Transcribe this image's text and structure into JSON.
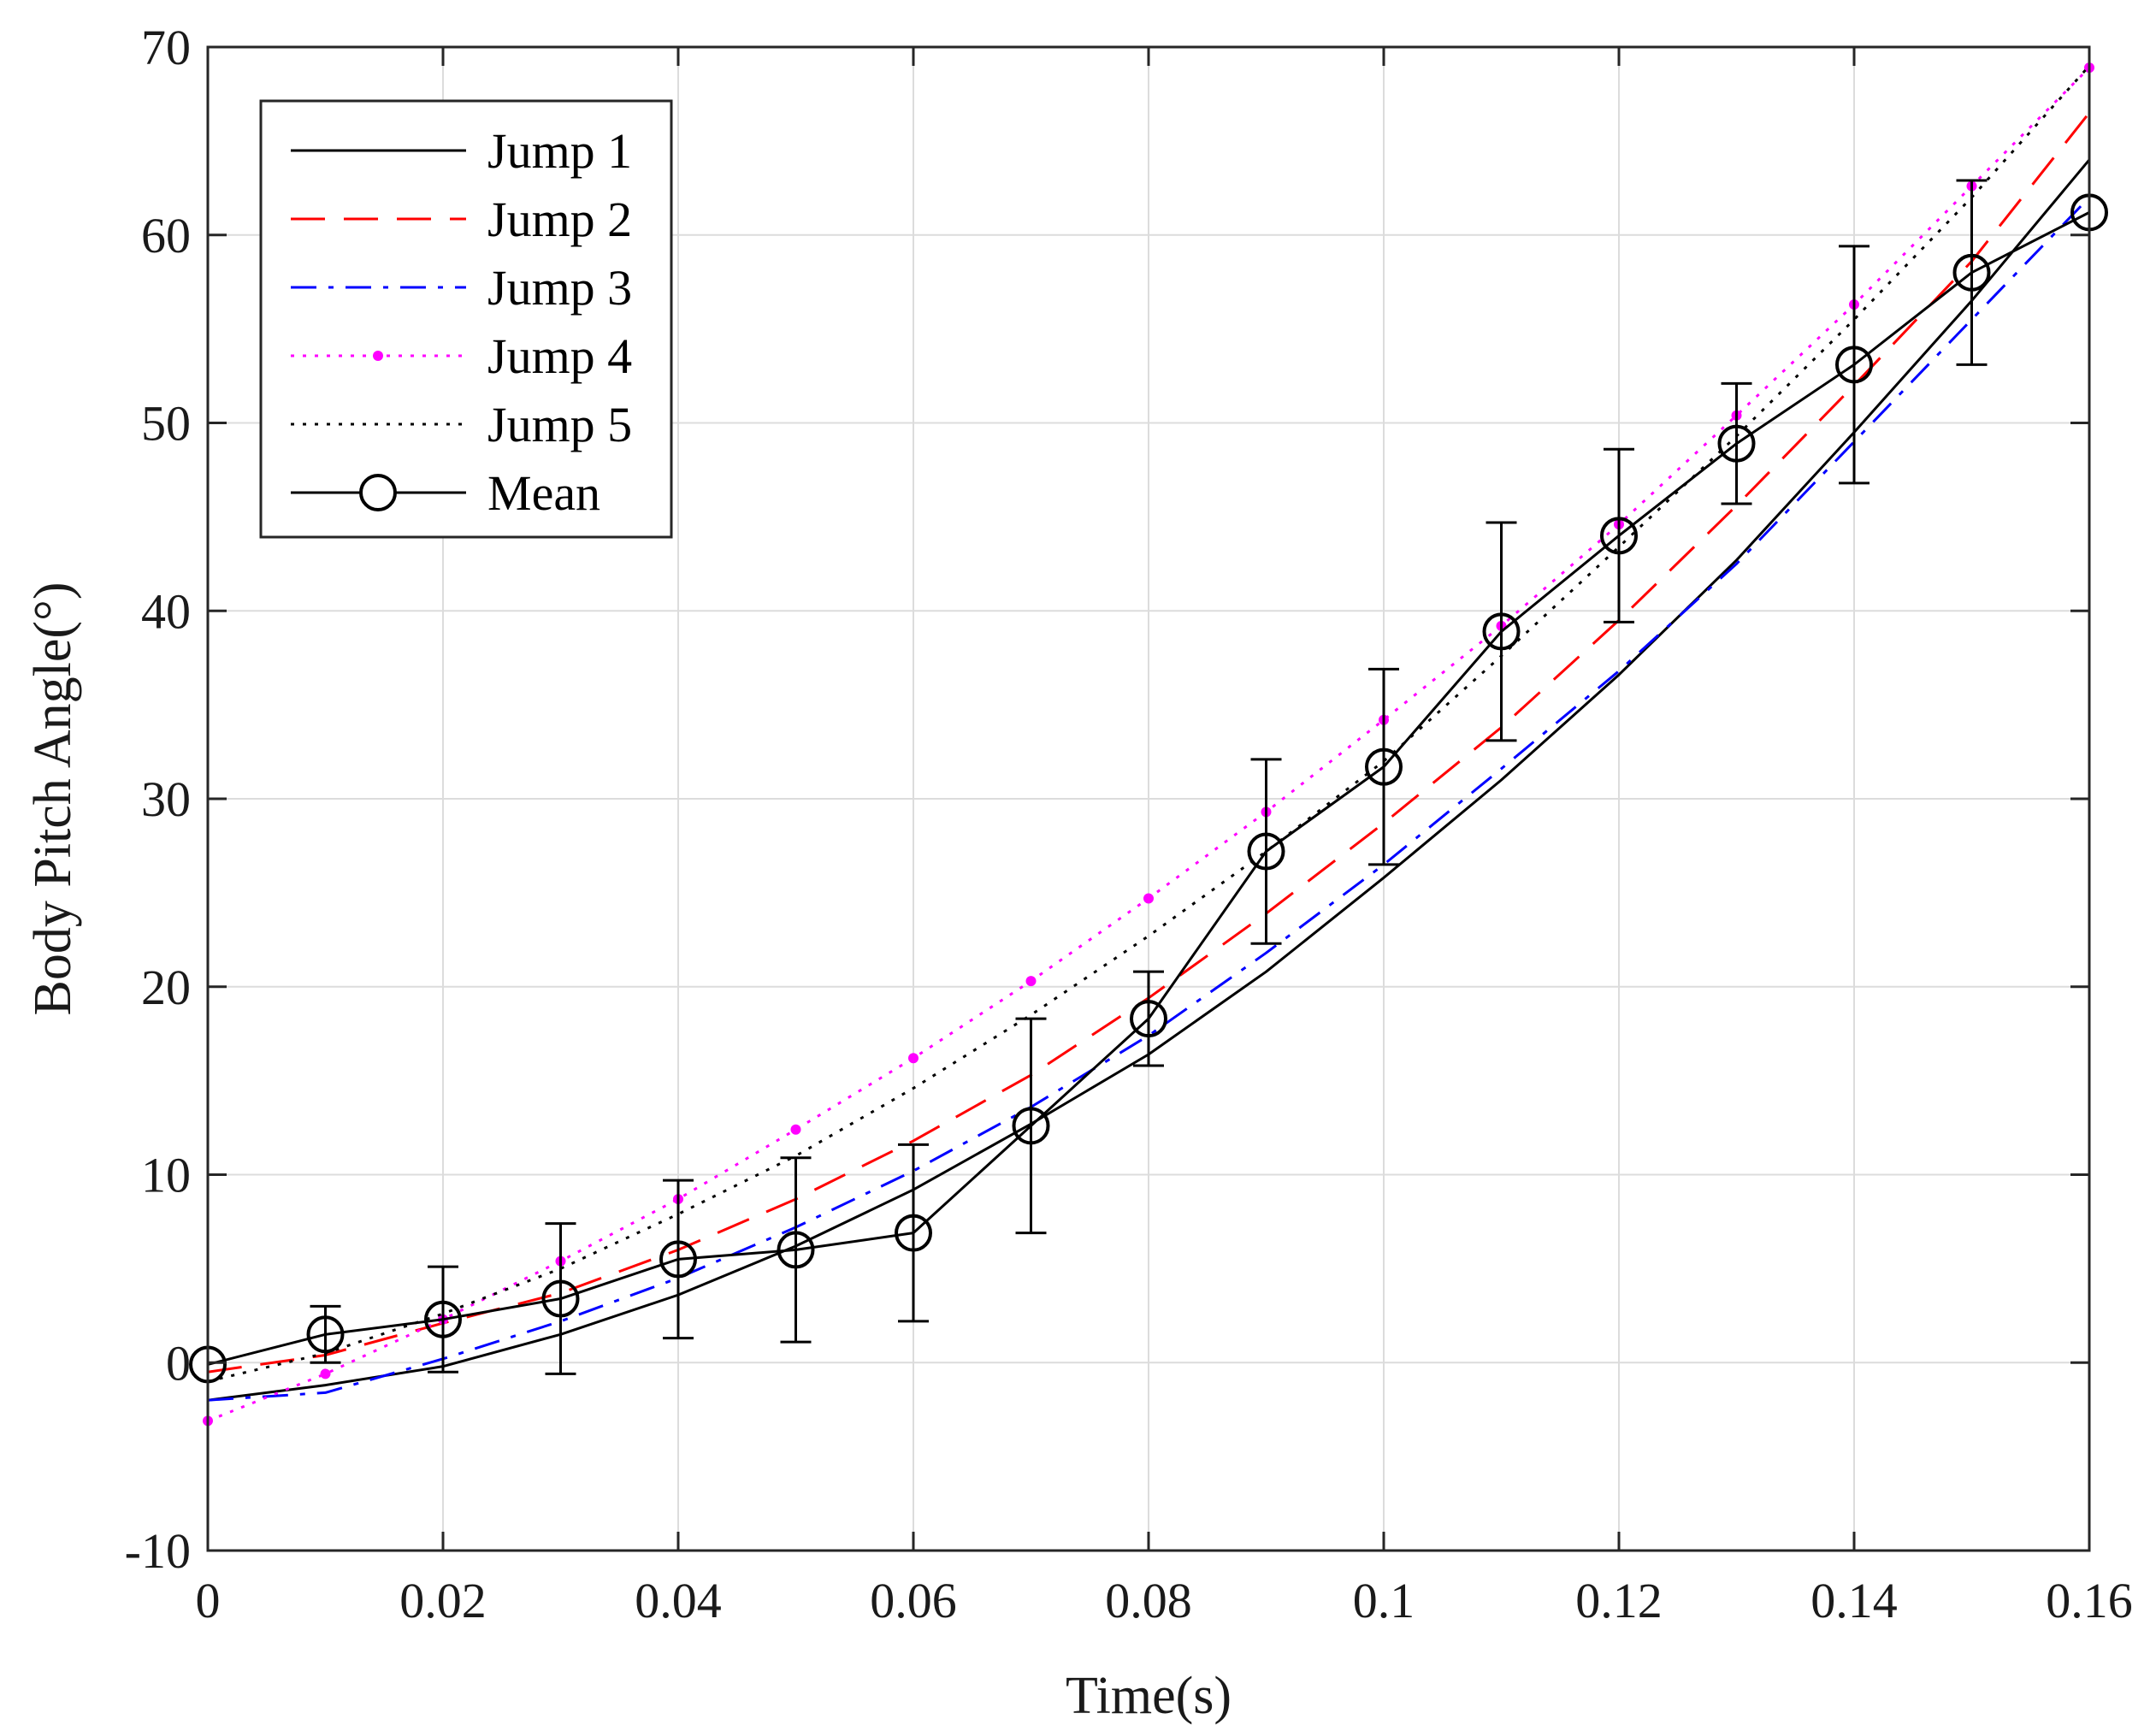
{
  "chart_data": {
    "type": "line",
    "title": "",
    "xlabel": "Time(s)",
    "ylabel": "Body Pitch Angle(°)",
    "xlim": [
      0,
      0.16
    ],
    "ylim": [
      -10,
      70
    ],
    "grid": true,
    "legend_position": "top-left",
    "x_ticks": [
      0,
      0.02,
      0.04,
      0.06,
      0.08,
      0.1,
      0.12,
      0.14,
      0.16
    ],
    "x_tick_labels": [
      "0",
      "0.02",
      "0.04",
      "0.06",
      "0.08",
      "0.1",
      "0.12",
      "0.14",
      "0.16"
    ],
    "y_ticks": [
      -10,
      0,
      10,
      20,
      30,
      40,
      50,
      60,
      70
    ],
    "y_tick_labels": [
      "-10",
      "0",
      "10",
      "20",
      "30",
      "40",
      "50",
      "60",
      "70"
    ],
    "x": [
      0,
      0.01,
      0.02,
      0.03,
      0.04,
      0.05,
      0.06,
      0.07,
      0.08,
      0.09,
      0.1,
      0.11,
      0.12,
      0.13,
      0.14,
      0.15,
      0.16
    ],
    "series": [
      {
        "name": "Jump 1",
        "color": "#000000",
        "style": "solid",
        "values": [
          -2.0,
          -1.2,
          -0.2,
          1.5,
          3.6,
          6.2,
          9.2,
          12.7,
          16.4,
          20.8,
          25.8,
          31.0,
          36.6,
          42.7,
          49.5,
          56.5,
          64.0
        ]
      },
      {
        "name": "Jump 2",
        "color": "#ff0000",
        "style": "dashed",
        "values": [
          -0.5,
          0.4,
          2.1,
          3.7,
          6.0,
          8.7,
          11.8,
          15.3,
          19.4,
          23.9,
          28.7,
          33.8,
          39.5,
          45.6,
          52.0,
          58.6,
          66.5
        ]
      },
      {
        "name": "Jump 3",
        "color": "#0000ff",
        "style": "dashdot",
        "values": [
          -2.0,
          -1.6,
          0.2,
          2.2,
          4.5,
          7.2,
          10.2,
          13.6,
          17.4,
          21.8,
          26.5,
          31.6,
          36.8,
          42.5,
          49.0,
          55.5,
          62.0
        ]
      },
      {
        "name": "Jump 4",
        "color": "#ff00ff",
        "style": "dotted-markers",
        "values": [
          -3.1,
          -0.6,
          2.3,
          5.4,
          8.7,
          12.4,
          16.2,
          20.3,
          24.7,
          29.3,
          34.2,
          39.2,
          44.6,
          50.4,
          56.3,
          62.6,
          68.9
        ]
      },
      {
        "name": "Jump 5",
        "color": "#000000",
        "style": "dotted",
        "values": [
          -1.0,
          0.5,
          2.6,
          5.0,
          7.9,
          11.0,
          14.6,
          18.5,
          22.7,
          27.2,
          32.0,
          37.6,
          43.4,
          49.3,
          55.5,
          62.0,
          69.0
        ]
      },
      {
        "name": "Mean",
        "color": "#000000",
        "style": "solid-circles",
        "values": [
          -0.1,
          1.5,
          2.3,
          3.4,
          5.5,
          6.0,
          6.9,
          12.6,
          18.3,
          27.2,
          31.7,
          38.9,
          44.0,
          48.9,
          53.1,
          58.0,
          61.2
        ],
        "error": [
          0,
          1.5,
          2.8,
          4.0,
          4.2,
          4.9,
          4.7,
          5.7,
          2.5,
          4.9,
          5.2,
          5.8,
          4.6,
          3.2,
          6.3,
          4.9,
          0
        ]
      }
    ]
  }
}
